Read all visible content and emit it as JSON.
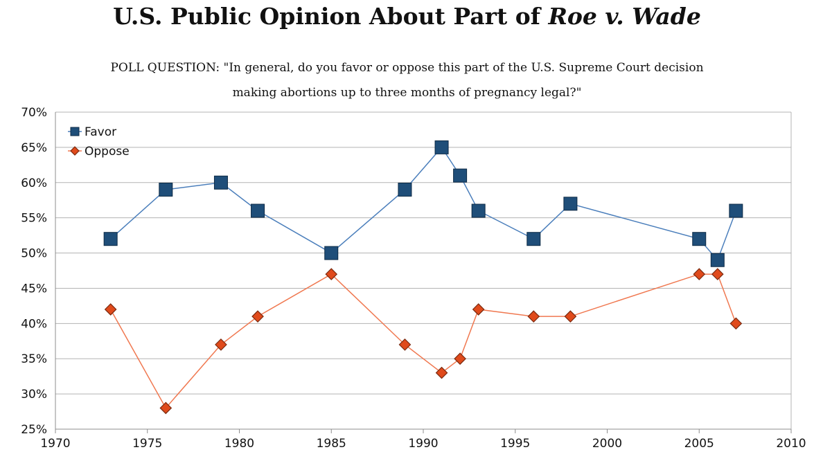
{
  "title": {
    "main": "U.S. Public Opinion About Part of ",
    "italic": "Roe v. Wade"
  },
  "subtitle": {
    "line1": "POLL QUESTION: \"In general, do you favor or oppose this part of the U.S. Supreme Court decision",
    "line2": "making abortions up to three months of pregnancy legal?\""
  },
  "colors": {
    "favor": "#1f4e79",
    "favor_line": "#4a7ebb",
    "oppose": "#e04a1b",
    "oppose_line": "#f07850",
    "grid": "#b3b3b3",
    "axis": "#8c8c8c"
  },
  "chart_data": {
    "type": "line",
    "x": [
      1973,
      1976,
      1979,
      1981,
      1985,
      1989,
      1991,
      1992,
      1993,
      1996,
      1998,
      2005,
      2006,
      2007
    ],
    "series": [
      {
        "name": "Favor",
        "marker": "square",
        "values": [
          52,
          59,
          60,
          56,
          50,
          59,
          65,
          61,
          56,
          52,
          57,
          52,
          49,
          56
        ]
      },
      {
        "name": "Oppose",
        "marker": "diamond",
        "values": [
          42,
          28,
          37,
          41,
          47,
          37,
          33,
          35,
          42,
          41,
          41,
          47,
          47,
          40
        ]
      }
    ],
    "xlim": [
      1970,
      2010
    ],
    "ylim": [
      25,
      70
    ],
    "xticks": [
      "1970",
      "1975",
      "1980",
      "1985",
      "1990",
      "1995",
      "2000",
      "2005",
      "2010"
    ],
    "yticks": [
      "25%",
      "30%",
      "35%",
      "40%",
      "45%",
      "50%",
      "55%",
      "60%",
      "65%",
      "70%"
    ],
    "grid": "horizontal",
    "legend_position": "top-left"
  }
}
